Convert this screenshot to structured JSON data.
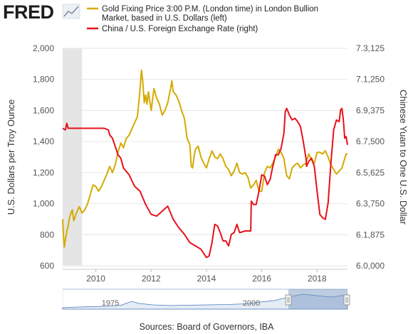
{
  "logo": {
    "text": "FRED",
    "icon": "fred-chart-icon"
  },
  "legend": [
    {
      "lines": [
        "Gold Fixing Price 3:00 P.M. (London time) in London Bullion",
        "Market, based in U.S. Dollars (left)"
      ],
      "color": "#d4aa00"
    },
    {
      "lines": [
        "China / U.S. Foreign Exchange Rate (right)"
      ],
      "color": "#e8101a"
    }
  ],
  "source": "Sources: Board of Governors, IBA",
  "navigator": {
    "labels": [
      "1975",
      "2000"
    ]
  },
  "chart_data": {
    "type": "line",
    "left_axis": {
      "label": "U.S. Dollars per Troy Ounce",
      "ticks": [
        "2,000",
        "1,800",
        "1,600",
        "1,400",
        "1,200",
        "1,000",
        "800",
        "600"
      ],
      "ylim": [
        600,
        2000
      ]
    },
    "right_axis": {
      "label": "Chinese Yuan to One U.S. Dollar",
      "ticks": [
        "7.3,125",
        "7.1,250",
        "6.9,375",
        "6.7,500",
        "6.5,625",
        "6.3,750",
        "6.1,875",
        "6.0,000"
      ],
      "ylim": [
        6.0,
        7.3125
      ]
    },
    "x_axis": {
      "ticks": [
        "2010",
        "2012",
        "2014",
        "2016",
        "2018"
      ],
      "xlim": [
        2008.8,
        2019.1
      ]
    },
    "recession_shading": [
      2008.8,
      2009.5
    ],
    "grid": "horizontal",
    "series": [
      {
        "name": "Gold Fixing Price 3:00 P.M. (London time) in London Bullion Market, based in U.S. Dollars (left)",
        "axis": "left",
        "color": "#d4aa00",
        "points": [
          [
            2008.8,
            900
          ],
          [
            2008.83,
            790
          ],
          [
            2008.86,
            720
          ],
          [
            2008.9,
            770
          ],
          [
            2008.95,
            820
          ],
          [
            2009.0,
            860
          ],
          [
            2009.05,
            910
          ],
          [
            2009.1,
            940
          ],
          [
            2009.15,
            960
          ],
          [
            2009.2,
            890
          ],
          [
            2009.3,
            940
          ],
          [
            2009.4,
            980
          ],
          [
            2009.5,
            940
          ],
          [
            2009.6,
            960
          ],
          [
            2009.7,
            1000
          ],
          [
            2009.8,
            1060
          ],
          [
            2009.9,
            1120
          ],
          [
            2010.0,
            1110
          ],
          [
            2010.1,
            1080
          ],
          [
            2010.2,
            1110
          ],
          [
            2010.3,
            1150
          ],
          [
            2010.4,
            1190
          ],
          [
            2010.5,
            1240
          ],
          [
            2010.6,
            1200
          ],
          [
            2010.7,
            1250
          ],
          [
            2010.8,
            1330
          ],
          [
            2010.9,
            1390
          ],
          [
            2011.0,
            1360
          ],
          [
            2011.1,
            1420
          ],
          [
            2011.2,
            1440
          ],
          [
            2011.3,
            1480
          ],
          [
            2011.4,
            1520
          ],
          [
            2011.5,
            1560
          ],
          [
            2011.58,
            1700
          ],
          [
            2011.65,
            1860
          ],
          [
            2011.7,
            1780
          ],
          [
            2011.75,
            1650
          ],
          [
            2011.8,
            1700
          ],
          [
            2011.85,
            1640
          ],
          [
            2011.9,
            1720
          ],
          [
            2012.0,
            1600
          ],
          [
            2012.1,
            1740
          ],
          [
            2012.2,
            1680
          ],
          [
            2012.3,
            1640
          ],
          [
            2012.4,
            1570
          ],
          [
            2012.5,
            1600
          ],
          [
            2012.6,
            1650
          ],
          [
            2012.7,
            1740
          ],
          [
            2012.75,
            1790
          ],
          [
            2012.8,
            1720
          ],
          [
            2012.9,
            1700
          ],
          [
            2013.0,
            1660
          ],
          [
            2013.1,
            1600
          ],
          [
            2013.2,
            1550
          ],
          [
            2013.3,
            1420
          ],
          [
            2013.4,
            1380
          ],
          [
            2013.45,
            1240
          ],
          [
            2013.5,
            1230
          ],
          [
            2013.55,
            1300
          ],
          [
            2013.6,
            1350
          ],
          [
            2013.7,
            1370
          ],
          [
            2013.8,
            1300
          ],
          [
            2013.9,
            1260
          ],
          [
            2014.0,
            1230
          ],
          [
            2014.1,
            1290
          ],
          [
            2014.2,
            1340
          ],
          [
            2014.3,
            1300
          ],
          [
            2014.4,
            1290
          ],
          [
            2014.5,
            1320
          ],
          [
            2014.6,
            1290
          ],
          [
            2014.7,
            1240
          ],
          [
            2014.8,
            1220
          ],
          [
            2014.9,
            1180
          ],
          [
            2015.0,
            1210
          ],
          [
            2015.1,
            1260
          ],
          [
            2015.2,
            1200
          ],
          [
            2015.3,
            1190
          ],
          [
            2015.4,
            1200
          ],
          [
            2015.5,
            1170
          ],
          [
            2015.6,
            1100
          ],
          [
            2015.7,
            1120
          ],
          [
            2015.8,
            1150
          ],
          [
            2015.9,
            1080
          ],
          [
            2016.0,
            1080
          ],
          [
            2016.1,
            1200
          ],
          [
            2016.2,
            1240
          ],
          [
            2016.3,
            1230
          ],
          [
            2016.4,
            1260
          ],
          [
            2016.5,
            1300
          ],
          [
            2016.6,
            1350
          ],
          [
            2016.7,
            1330
          ],
          [
            2016.8,
            1290
          ],
          [
            2016.9,
            1180
          ],
          [
            2017.0,
            1160
          ],
          [
            2017.1,
            1230
          ],
          [
            2017.2,
            1250
          ],
          [
            2017.3,
            1260
          ],
          [
            2017.4,
            1230
          ],
          [
            2017.5,
            1250
          ],
          [
            2017.6,
            1260
          ],
          [
            2017.7,
            1320
          ],
          [
            2017.8,
            1280
          ],
          [
            2017.9,
            1260
          ],
          [
            2018.0,
            1330
          ],
          [
            2018.1,
            1330
          ],
          [
            2018.2,
            1320
          ],
          [
            2018.3,
            1340
          ],
          [
            2018.4,
            1300
          ],
          [
            2018.5,
            1250
          ],
          [
            2018.6,
            1220
          ],
          [
            2018.7,
            1190
          ],
          [
            2018.8,
            1210
          ],
          [
            2018.9,
            1230
          ],
          [
            2019.0,
            1290
          ],
          [
            2019.05,
            1320
          ],
          [
            2019.1,
            1320
          ]
        ]
      },
      {
        "name": "China / U.S. Foreign Exchange Rate (right)",
        "axis": "right",
        "color": "#e8101a",
        "points": [
          [
            2008.8,
            6.83
          ],
          [
            2008.9,
            6.82
          ],
          [
            2008.95,
            6.86
          ],
          [
            2009.0,
            6.83
          ],
          [
            2009.1,
            6.83
          ],
          [
            2009.3,
            6.83
          ],
          [
            2009.5,
            6.83
          ],
          [
            2009.7,
            6.83
          ],
          [
            2009.9,
            6.83
          ],
          [
            2010.1,
            6.83
          ],
          [
            2010.3,
            6.83
          ],
          [
            2010.45,
            6.82
          ],
          [
            2010.5,
            6.79
          ],
          [
            2010.6,
            6.77
          ],
          [
            2010.7,
            6.72
          ],
          [
            2010.8,
            6.67
          ],
          [
            2010.9,
            6.65
          ],
          [
            2011.0,
            6.59
          ],
          [
            2011.2,
            6.55
          ],
          [
            2011.4,
            6.48
          ],
          [
            2011.6,
            6.45
          ],
          [
            2011.8,
            6.37
          ],
          [
            2012.0,
            6.31
          ],
          [
            2012.2,
            6.3
          ],
          [
            2012.4,
            6.33
          ],
          [
            2012.6,
            6.36
          ],
          [
            2012.8,
            6.28
          ],
          [
            2013.0,
            6.23
          ],
          [
            2013.2,
            6.19
          ],
          [
            2013.4,
            6.14
          ],
          [
            2013.6,
            6.12
          ],
          [
            2013.8,
            6.1
          ],
          [
            2014.0,
            6.05
          ],
          [
            2014.1,
            6.06
          ],
          [
            2014.2,
            6.14
          ],
          [
            2014.3,
            6.25
          ],
          [
            2014.4,
            6.24
          ],
          [
            2014.5,
            6.2
          ],
          [
            2014.6,
            6.15
          ],
          [
            2014.7,
            6.15
          ],
          [
            2014.8,
            6.12
          ],
          [
            2014.9,
            6.19
          ],
          [
            2015.0,
            6.2
          ],
          [
            2015.1,
            6.25
          ],
          [
            2015.2,
            6.2
          ],
          [
            2015.4,
            6.21
          ],
          [
            2015.6,
            6.21
          ],
          [
            2015.62,
            6.39
          ],
          [
            2015.7,
            6.37
          ],
          [
            2015.8,
            6.37
          ],
          [
            2015.9,
            6.45
          ],
          [
            2016.0,
            6.55
          ],
          [
            2016.1,
            6.54
          ],
          [
            2016.2,
            6.49
          ],
          [
            2016.3,
            6.52
          ],
          [
            2016.4,
            6.6
          ],
          [
            2016.5,
            6.67
          ],
          [
            2016.6,
            6.67
          ],
          [
            2016.7,
            6.71
          ],
          [
            2016.8,
            6.8
          ],
          [
            2016.85,
            6.93
          ],
          [
            2016.9,
            6.95
          ],
          [
            2017.0,
            6.91
          ],
          [
            2017.1,
            6.88
          ],
          [
            2017.2,
            6.89
          ],
          [
            2017.3,
            6.87
          ],
          [
            2017.4,
            6.84
          ],
          [
            2017.5,
            6.75
          ],
          [
            2017.6,
            6.65
          ],
          [
            2017.62,
            6.6
          ],
          [
            2017.7,
            6.63
          ],
          [
            2017.8,
            6.65
          ],
          [
            2017.9,
            6.6
          ],
          [
            2018.0,
            6.45
          ],
          [
            2018.1,
            6.31
          ],
          [
            2018.2,
            6.29
          ],
          [
            2018.3,
            6.28
          ],
          [
            2018.4,
            6.38
          ],
          [
            2018.5,
            6.62
          ],
          [
            2018.6,
            6.82
          ],
          [
            2018.7,
            6.88
          ],
          [
            2018.8,
            6.87
          ],
          [
            2018.85,
            6.94
          ],
          [
            2018.9,
            6.95
          ],
          [
            2018.95,
            6.88
          ],
          [
            2019.0,
            6.77
          ],
          [
            2019.05,
            6.78
          ],
          [
            2019.1,
            6.73
          ]
        ]
      }
    ]
  }
}
